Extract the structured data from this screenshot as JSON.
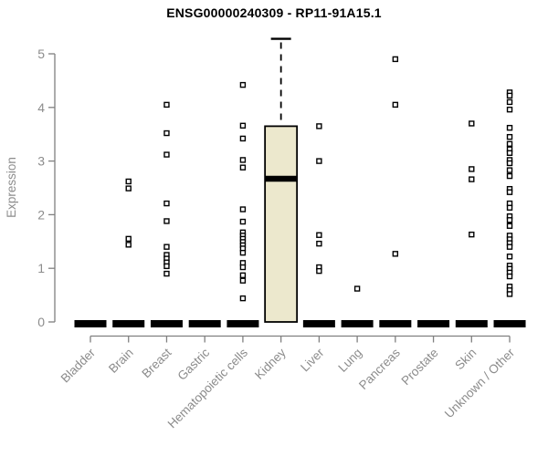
{
  "chart_data": {
    "type": "boxplot",
    "title": "ENSG00000240309 - RP11-91A15.1",
    "ylabel": "Expression",
    "xlabel": "",
    "ylim": [
      0,
      5
    ],
    "yticks": [
      0,
      1,
      2,
      3,
      4,
      5
    ],
    "grid": false,
    "legend": null,
    "marker": "open-square",
    "categories": [
      "Bladder",
      "Brain",
      "Breast",
      "Gastric",
      "Hematopoietic cells",
      "Kidney",
      "Liver",
      "Lung",
      "Pancreas",
      "Prostate",
      "Skin",
      "Unknown / Other"
    ],
    "boxes": [
      {
        "category": "Bladder",
        "q1": 0,
        "median": 0,
        "q3": 0,
        "whisker_high": null,
        "points": []
      },
      {
        "category": "Brain",
        "q1": 0,
        "median": 0,
        "q3": 0,
        "whisker_high": null,
        "points": [
          2.62,
          2.49,
          1.55,
          1.44
        ]
      },
      {
        "category": "Breast",
        "q1": 0,
        "median": 0,
        "q3": 0,
        "whisker_high": null,
        "points": [
          4.05,
          3.52,
          3.12,
          2.21,
          1.88,
          1.4,
          1.25,
          1.18,
          1.11,
          1.04,
          0.9
        ]
      },
      {
        "category": "Gastric",
        "q1": 0,
        "median": 0,
        "q3": 0,
        "whisker_high": null,
        "points": []
      },
      {
        "category": "Hematopoietic cells",
        "q1": 0,
        "median": 0,
        "q3": 0,
        "whisker_high": null,
        "points": [
          4.42,
          3.66,
          3.42,
          3.02,
          2.88,
          2.1,
          1.87,
          1.67,
          1.61,
          1.55,
          1.49,
          1.43,
          1.37,
          1.29,
          1.1,
          1.02,
          0.87,
          0.77,
          0.44
        ]
      },
      {
        "category": "Kidney",
        "q1": 0,
        "median": 2.67,
        "q3": 3.65,
        "whisker_low": 0,
        "whisker_high": 5.28,
        "points": []
      },
      {
        "category": "Liver",
        "q1": 0,
        "median": 0,
        "q3": 0,
        "whisker_high": null,
        "points": [
          3.65,
          3.0,
          1.62,
          1.46,
          1.02,
          0.95
        ]
      },
      {
        "category": "Lung",
        "q1": 0,
        "median": 0,
        "q3": 0,
        "whisker_high": null,
        "points": [
          0.62
        ]
      },
      {
        "category": "Pancreas",
        "q1": 0,
        "median": 0,
        "q3": 0,
        "whisker_high": null,
        "points": [
          4.9,
          4.05,
          1.27
        ]
      },
      {
        "category": "Prostate",
        "q1": 0,
        "median": 0,
        "q3": 0,
        "whisker_high": null,
        "points": []
      },
      {
        "category": "Skin",
        "q1": 0,
        "median": 0,
        "q3": 0,
        "whisker_high": null,
        "points": [
          3.7,
          2.85,
          2.66,
          1.63
        ]
      },
      {
        "category": "Unknown / Other",
        "q1": 0,
        "median": 0,
        "q3": 0,
        "whisker_high": null,
        "points": [
          4.28,
          4.22,
          4.1,
          3.96,
          3.62,
          3.45,
          3.32,
          3.22,
          3.15,
          3.02,
          2.96,
          2.83,
          2.72,
          2.48,
          2.42,
          2.21,
          2.13,
          1.97,
          1.9,
          1.79,
          1.61,
          1.54,
          1.47,
          1.4,
          1.22,
          1.05,
          0.99,
          0.92,
          0.85,
          0.66,
          0.59,
          0.52
        ]
      }
    ],
    "colors": {
      "box_fill": "#ece8cd",
      "box_border": "#000000",
      "median": "#000000",
      "point": "#000000",
      "axis": "#808080",
      "label": "#8c8c8c",
      "title": "#000000",
      "background": "#ffffff"
    }
  }
}
